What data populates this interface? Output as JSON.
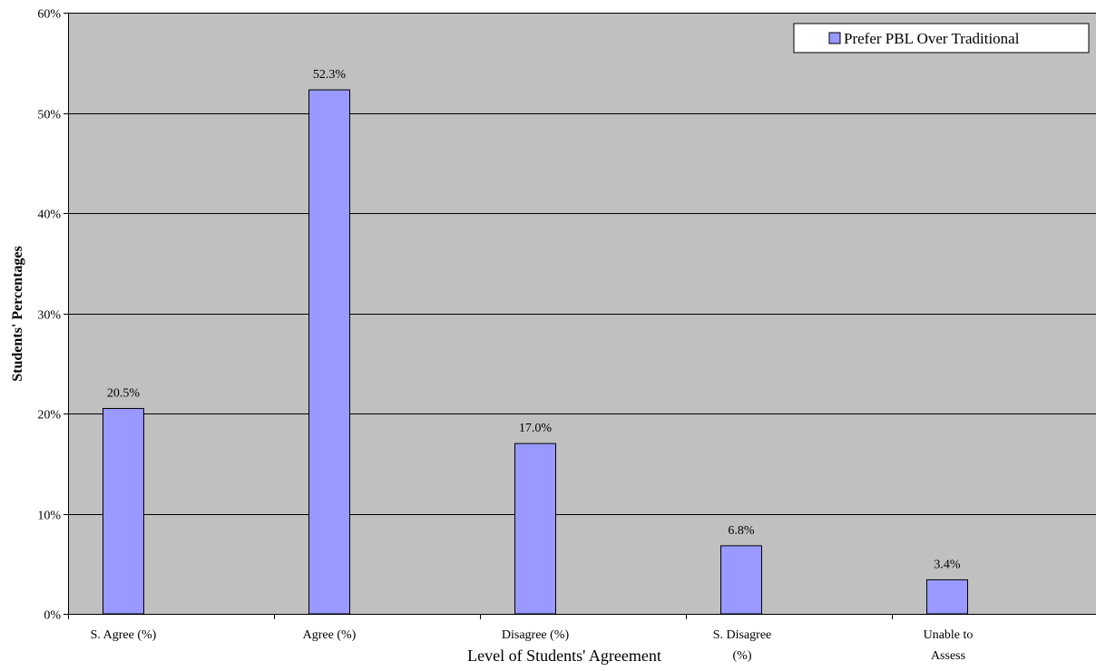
{
  "chart_data": {
    "type": "bar",
    "categories": [
      "S. Agree (%)",
      "Agree (%)",
      "Disagree (%)",
      "S. Disagree (%)",
      "Unable to Assess"
    ],
    "category_lines": [
      [
        "S. Agree (%)"
      ],
      [
        "Agree (%)"
      ],
      [
        "Disagree (%)"
      ],
      [
        "S. Disagree",
        "(%)"
      ],
      [
        "Unable to",
        "Assess"
      ]
    ],
    "series": [
      {
        "name": "Prefer PBL Over Traditional",
        "values": [
          20.5,
          52.3,
          17.0,
          6.8,
          3.4
        ],
        "data_labels": [
          "20.5%",
          "52.3%",
          "17.0%",
          "6.8%",
          "3.4%"
        ],
        "color": "#9999ff"
      }
    ],
    "xlabel": "Level of Students' Agreement",
    "ylabel": "Students' Percentages",
    "ylim": [
      0,
      60
    ],
    "yticks": [
      0,
      10,
      20,
      30,
      40,
      50,
      60
    ],
    "ytick_labels": [
      "0%",
      "10%",
      "20%",
      "30%",
      "40%",
      "50%",
      "60%"
    ],
    "grid": true,
    "legend_position": "top-right",
    "plot_background": "#c0c0c0"
  }
}
